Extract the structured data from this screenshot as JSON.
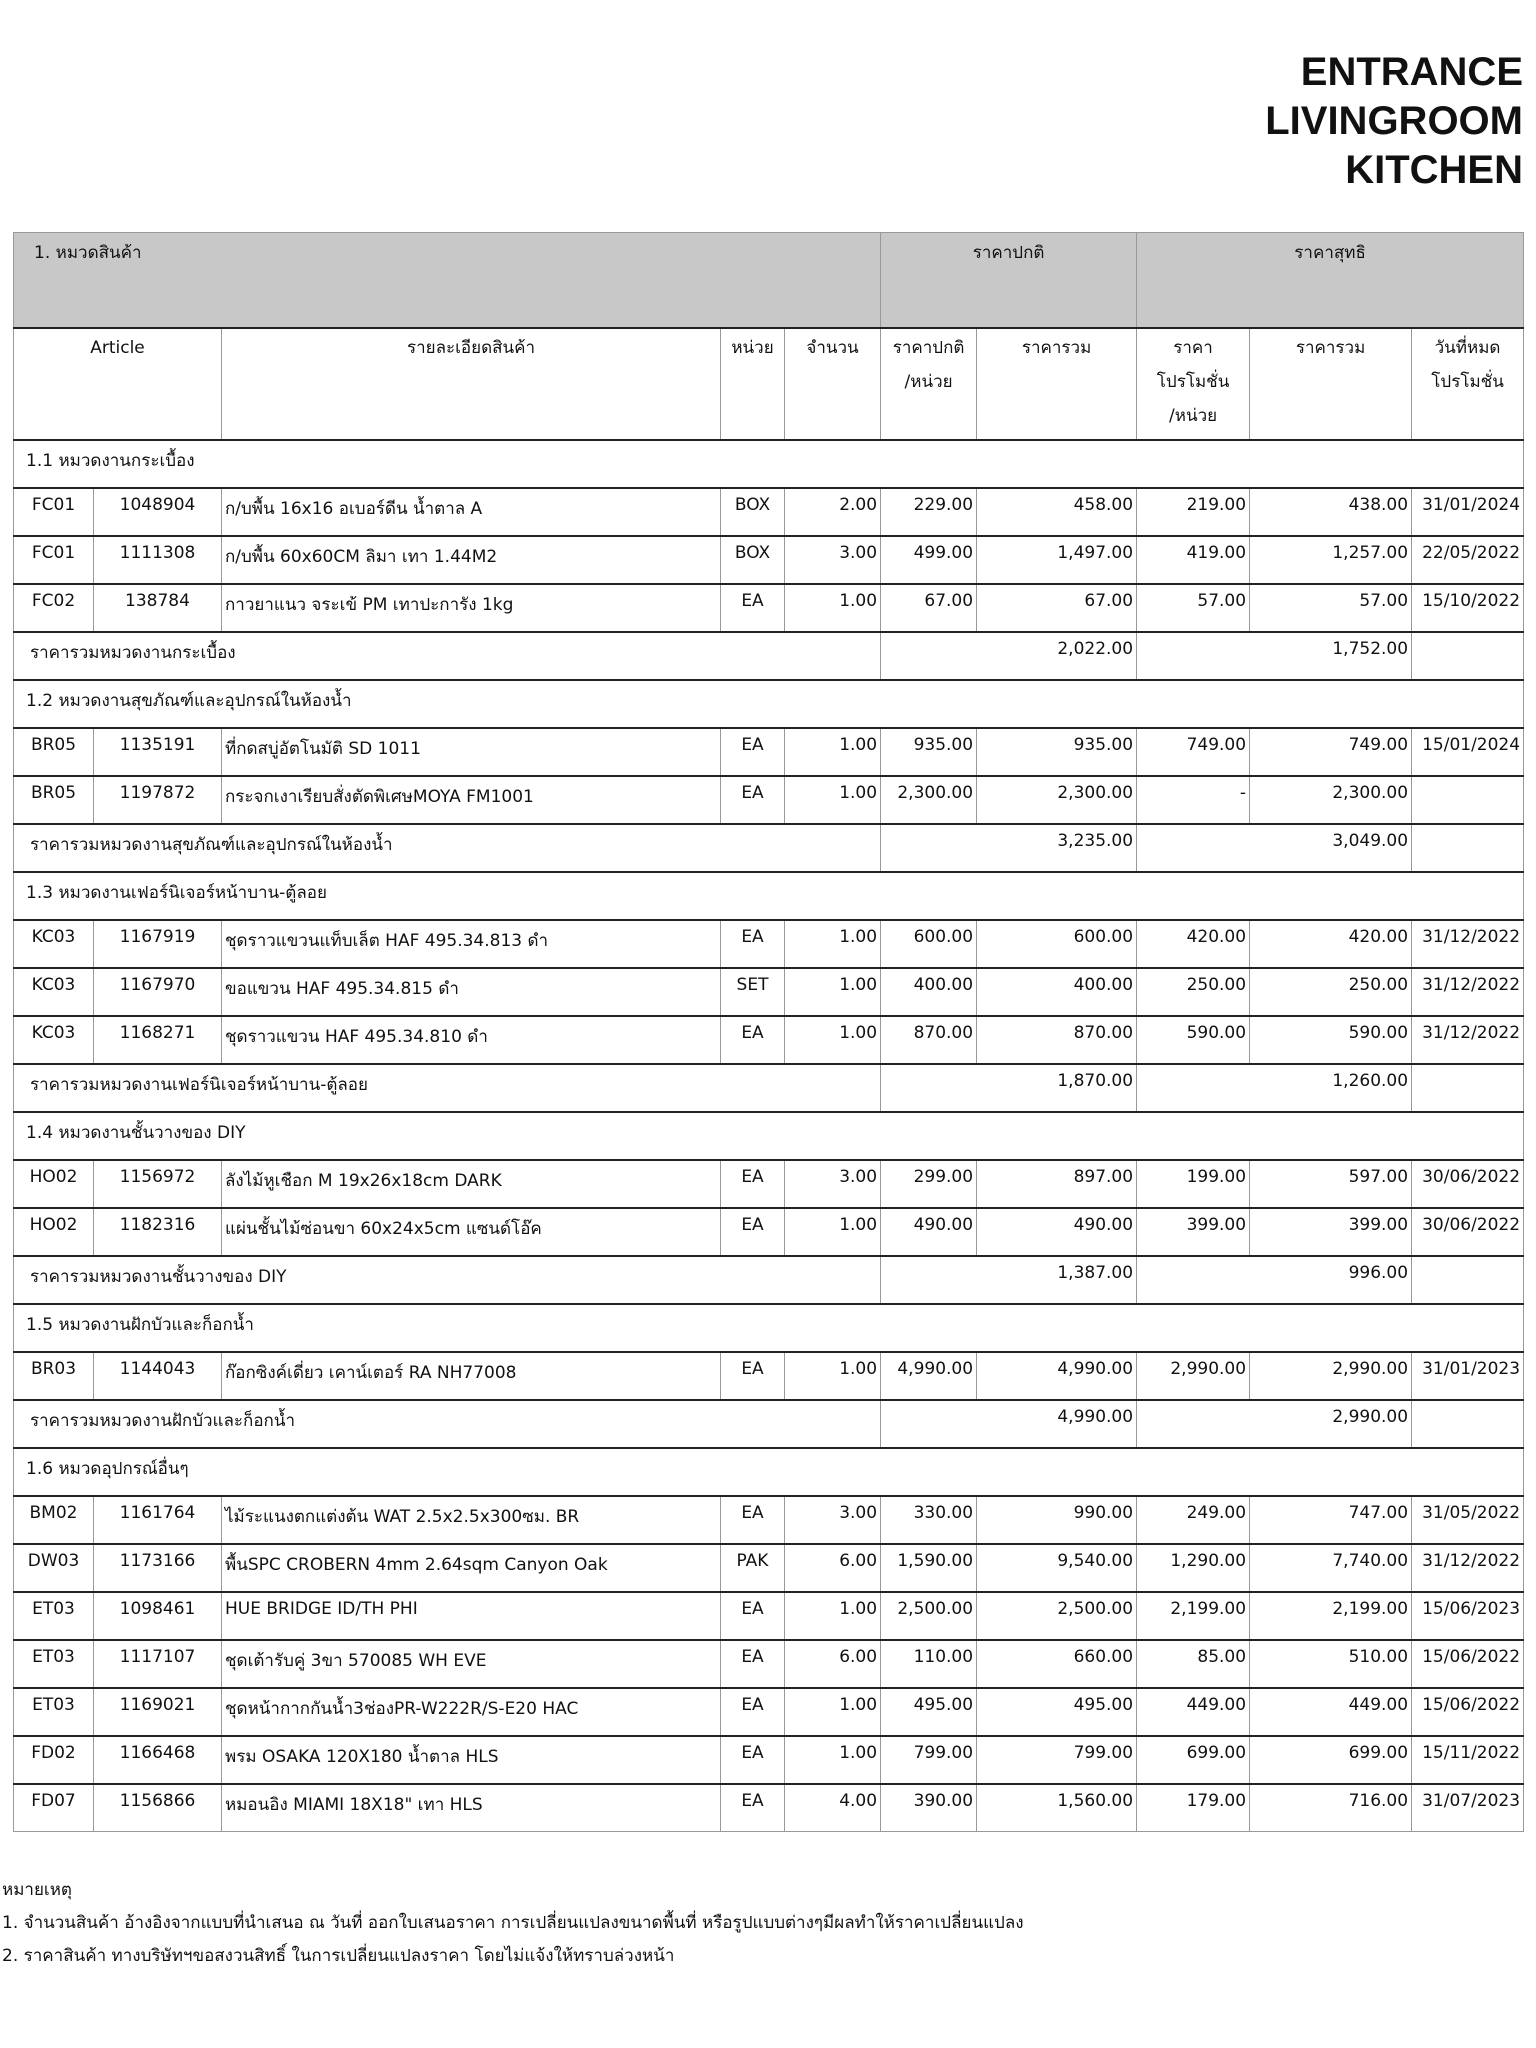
{
  "header": {
    "lines": [
      "ENTRANCE",
      "LIVINGROOM",
      "KITCHEN"
    ]
  },
  "table": {
    "group_headers": {
      "category": "1. หมวดสินค้า",
      "normal_price": "ราคาปกติ",
      "net_price": "ราคาสุทธิ"
    },
    "columns": [
      [
        "Article"
      ],
      [
        "รายละเอียดสินค้า"
      ],
      [
        "หน่วย"
      ],
      [
        "จำนวน"
      ],
      [
        "ราคาปกติ",
        "/หน่วย"
      ],
      [
        "ราคารวม"
      ],
      [
        "ราคา",
        "โปรโมชั่น",
        "/หน่วย"
      ],
      [
        "ราคารวม"
      ],
      [
        "วันที่หมด",
        "โปรโมชั่น"
      ]
    ],
    "sections": [
      {
        "title": "1.1 หมวดงานกระเบื้อง",
        "rows": [
          [
            "FC01",
            "1048904",
            "ก/บพื้น 16x16 อเบอร์ดีน น้ำตาล A",
            "BOX",
            "2.00",
            "229.00",
            "458.00",
            "219.00",
            "438.00",
            "31/01/2024"
          ],
          [
            "FC01",
            "1111308",
            "ก/บพื้น 60x60CM ลิมา เทา 1.44M2",
            "BOX",
            "3.00",
            "499.00",
            "1,497.00",
            "419.00",
            "1,257.00",
            "22/05/2022"
          ],
          [
            "FC02",
            "138784",
            "กาวยาแนว จระเข้ PM เทาปะการัง 1kg",
            "EA",
            "1.00",
            "67.00",
            "67.00",
            "57.00",
            "57.00",
            "15/10/2022"
          ]
        ],
        "subtotal": {
          "label": "ราคารวมหมวดงานกระเบื้อง",
          "normal_total": "2,022.00",
          "net_total": "1,752.00"
        }
      },
      {
        "title": "1.2 หมวดงานสุขภัณฑ์และอุปกรณ์ในห้องน้ำ",
        "rows": [
          [
            "BR05",
            "1135191",
            "ที่กดสบู่อัตโนมัติ SD 1011",
            "EA",
            "1.00",
            "935.00",
            "935.00",
            "749.00",
            "749.00",
            "15/01/2024"
          ],
          [
            "BR05",
            "1197872",
            "กระจกเงาเรียบสั่งตัดพิเศษMOYA FM1001",
            "EA",
            "1.00",
            "2,300.00",
            "2,300.00",
            "-",
            "2,300.00"
          ]
        ],
        "subtotal": {
          "label": "ราคารวมหมวดงานสุขภัณฑ์และอุปกรณ์ในห้องน้ำ",
          "normal_total": "3,235.00",
          "net_total": "3,049.00"
        }
      },
      {
        "title": "1.3 หมวดงานเฟอร์นิเจอร์หน้าบาน-ตู้ลอย",
        "rows": [
          [
            "KC03",
            "1167919",
            "ชุดราวแขวนแท็บเล็ต HAF 495.34.813 ดำ",
            "EA",
            "1.00",
            "600.00",
            "600.00",
            "420.00",
            "420.00",
            "31/12/2022"
          ],
          [
            "KC03",
            "1167970",
            "ขอแขวน HAF 495.34.815 ดำ",
            "SET",
            "1.00",
            "400.00",
            "400.00",
            "250.00",
            "250.00",
            "31/12/2022"
          ],
          [
            "KC03",
            "1168271",
            "ชุดราวแขวน HAF 495.34.810 ดำ",
            "EA",
            "1.00",
            "870.00",
            "870.00",
            "590.00",
            "590.00",
            "31/12/2022"
          ]
        ],
        "subtotal": {
          "label": "ราคารวมหมวดงานเฟอร์นิเจอร์หน้าบาน-ตู้ลอย",
          "normal_total": "1,870.00",
          "net_total": "1,260.00"
        }
      },
      {
        "title": "1.4 หมวดงานชั้นวางของ DIY",
        "rows": [
          [
            "HO02",
            "1156972",
            "ลังไม้หูเชือก M 19x26x18cm  DARK",
            "EA",
            "3.00",
            "299.00",
            "897.00",
            "199.00",
            "597.00",
            "30/06/2022"
          ],
          [
            "HO02",
            "1182316",
            "แผ่นชั้นไม้ซ่อนขา 60x24x5cm แซนด์โอ๊ค",
            "EA",
            "1.00",
            "490.00",
            "490.00",
            "399.00",
            "399.00",
            "30/06/2022"
          ]
        ],
        "subtotal": {
          "label": "ราคารวมหมวดงานชั้นวางของ DIY",
          "normal_total": "1,387.00",
          "net_total": "996.00"
        }
      },
      {
        "title": "1.5 หมวดงานฝักบัวและก็อกน้ำ",
        "rows": [
          [
            "BR03",
            "1144043",
            "ก๊อกซิงค์เดี่ยว เคาน์เตอร์ RA NH77008",
            "EA",
            "1.00",
            "4,990.00",
            "4,990.00",
            "2,990.00",
            "2,990.00",
            "31/01/2023"
          ]
        ],
        "subtotal": {
          "label": "ราคารวมหมวดงานฝักบัวและก็อกน้ำ",
          "normal_total": "4,990.00",
          "net_total": "2,990.00"
        }
      },
      {
        "title": "1.6 หมวดอุปกรณ์อื่นๆ",
        "rows": [
          [
            "BM02",
            "1161764",
            "ไม้ระแนงตกแต่งต้น WAT  2.5x2.5x300ซม. BR",
            "EA",
            "3.00",
            "330.00",
            "990.00",
            "249.00",
            "747.00",
            "31/05/2022"
          ],
          [
            "DW03",
            "1173166",
            "พื้นSPC CROBERN 4mm 2.64sqm Canyon Oak",
            "PAK",
            "6.00",
            "1,590.00",
            "9,540.00",
            "1,290.00",
            "7,740.00",
            "31/12/2022"
          ],
          [
            "ET03",
            "1098461",
            "HUE BRIDGE ID/TH PHI",
            "EA",
            "1.00",
            "2,500.00",
            "2,500.00",
            "2,199.00",
            "2,199.00",
            "15/06/2023"
          ],
          [
            "ET03",
            "1117107",
            "ชุดเต้ารับคู่ 3ขา 570085 WH EVE",
            "EA",
            "6.00",
            "110.00",
            "660.00",
            "85.00",
            "510.00",
            "15/06/2022"
          ],
          [
            "ET03",
            "1169021",
            "ชุดหน้ากากกันน้ำ3ช่องPR-W222R/S-E20 HAC",
            "EA",
            "1.00",
            "495.00",
            "495.00",
            "449.00",
            "449.00",
            "15/06/2022"
          ],
          [
            "FD02",
            "1166468",
            "พรม OSAKA 120X180 น้ำตาล HLS",
            "EA",
            "1.00",
            "799.00",
            "799.00",
            "699.00",
            "699.00",
            "15/11/2022"
          ],
          [
            "FD07",
            "1156866",
            "หมอนอิง MIAMI 18X18\" เทา HLS",
            "EA",
            "4.00",
            "390.00",
            "1,560.00",
            "179.00",
            "716.00",
            "31/07/2023"
          ]
        ]
      }
    ]
  },
  "notes": {
    "title": "หมายเหตุ",
    "items": [
      "1. จำนวนสินค้า อ้างอิงจากแบบที่นำเสนอ ณ วันที่ ออกใบเสนอราคา การเปลี่ยนแปลงขนาดพื้นที่ หรือรูปแบบต่างๆมีผลทำให้ราคาเปลี่ยนแปลง",
      "2. ราคาสินค้า ทางบริษัทฯขอสงวนสิทธิ์ ในการเปลี่ยนแปลงราคา โดยไม่แจ้งให้ทราบล่วงหน้า"
    ]
  }
}
